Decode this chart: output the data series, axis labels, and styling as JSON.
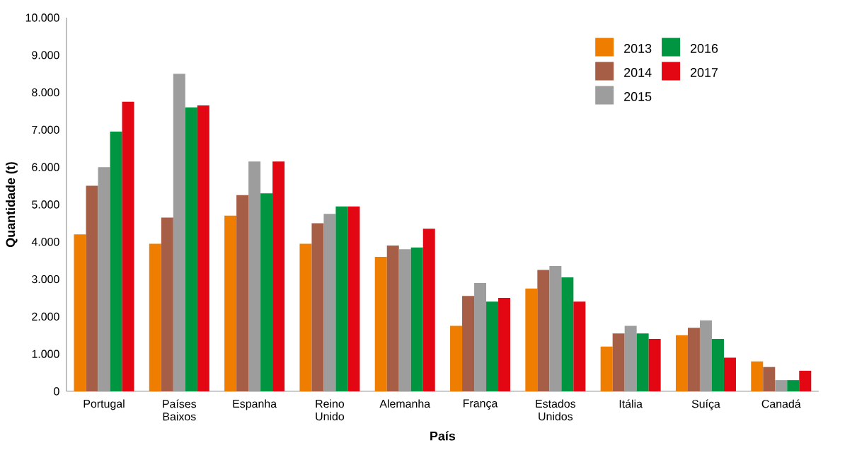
{
  "chart_data": {
    "type": "bar",
    "xlabel": "País",
    "ylabel": "Quantidade (t)",
    "categories": [
      "Portugal",
      "Países Baixos",
      "Espanha",
      "Reino Unido",
      "Alemanha",
      "França",
      "Estados Unidos",
      "Itália",
      "Suíça",
      "Canadá"
    ],
    "series": [
      {
        "name": "2013",
        "color": "#ef7d00",
        "values": [
          4200,
          3950,
          4700,
          3950,
          3600,
          1750,
          2750,
          1200,
          1500,
          800
        ]
      },
      {
        "name": "2014",
        "color": "#a65e46",
        "values": [
          5500,
          4650,
          5250,
          4500,
          3900,
          2550,
          3250,
          1550,
          1700,
          650
        ]
      },
      {
        "name": "2015",
        "color": "#9d9d9d",
        "values": [
          6000,
          8500,
          6150,
          4750,
          3800,
          2900,
          3350,
          1750,
          1900,
          300
        ]
      },
      {
        "name": "2016",
        "color": "#009540",
        "values": [
          6950,
          7600,
          5300,
          4950,
          3850,
          2400,
          3050,
          1550,
          1400,
          300
        ]
      },
      {
        "name": "2017",
        "color": "#e30613",
        "values": [
          7750,
          7650,
          6150,
          4950,
          4350,
          2500,
          2400,
          1400,
          900,
          550
        ]
      }
    ],
    "ylim": [
      0,
      10000
    ],
    "yticks": [
      0,
      {
        "value": 1000,
        "label": "1.000"
      },
      {
        "value": 2000,
        "label": "2.000"
      },
      {
        "value": 3000,
        "label": "3.000"
      },
      {
        "value": 4000,
        "label": "4.000"
      },
      {
        "value": 5000,
        "label": "5.000"
      },
      {
        "value": 6000,
        "label": "6.000"
      },
      {
        "value": 7000,
        "label": "7.000"
      },
      {
        "value": 8000,
        "label": "8.000"
      },
      {
        "value": 9000,
        "label": "9.000"
      },
      {
        "value": 10000,
        "label": "10.000"
      }
    ],
    "grid": false,
    "legend": "top right"
  }
}
